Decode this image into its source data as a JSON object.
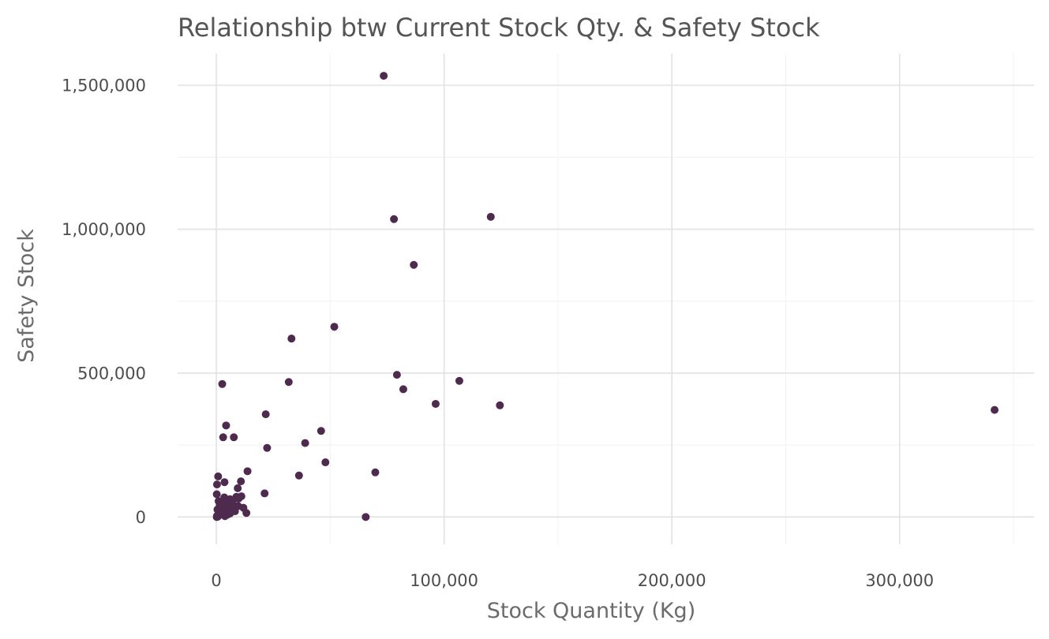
{
  "chart_data": {
    "type": "scatter",
    "title": "Relationship btw Current Stock Qty. & Safety Stock",
    "xlabel": "Stock Quantity (Kg)",
    "ylabel": "Safety Stock",
    "xlim": [
      -17000,
      359000
    ],
    "ylim": [
      -95000,
      1610000
    ],
    "x_ticks": [
      0,
      100000,
      200000,
      300000
    ],
    "x_tick_labels": [
      "0",
      "100,000",
      "200,000",
      "300,000"
    ],
    "y_ticks": [
      0,
      500000,
      1000000,
      1500000
    ],
    "y_tick_labels": [
      "0",
      "500,000",
      "1,000,000",
      "1,500,000"
    ],
    "grid": true,
    "point_color": "#4e2a4f",
    "series": [
      {
        "points": [
          [
            73500,
            1533000
          ],
          [
            78000,
            1035000
          ],
          [
            120500,
            1043000
          ],
          [
            86700,
            876000
          ],
          [
            51800,
            661000
          ],
          [
            33000,
            620000
          ],
          [
            31800,
            469000
          ],
          [
            2600,
            462000
          ],
          [
            79300,
            494000
          ],
          [
            106700,
            473000
          ],
          [
            82100,
            444000
          ],
          [
            96300,
            393000
          ],
          [
            124500,
            388000
          ],
          [
            341700,
            372000
          ],
          [
            21700,
            357000
          ],
          [
            4300,
            318000
          ],
          [
            46000,
            299000
          ],
          [
            3000,
            277000
          ],
          [
            7700,
            277000
          ],
          [
            39000,
            257000
          ],
          [
            22300,
            240000
          ],
          [
            47900,
            190000
          ],
          [
            13700,
            159000
          ],
          [
            69800,
            155000
          ],
          [
            36300,
            144000
          ],
          [
            800,
            141000
          ],
          [
            10800,
            124000
          ],
          [
            3600,
            121000
          ],
          [
            300,
            113000
          ],
          [
            9400,
            100000
          ],
          [
            21200,
            82000
          ],
          [
            200,
            79000
          ],
          [
            8800,
            70000
          ],
          [
            11000,
            72000
          ],
          [
            3500,
            68000
          ],
          [
            6000,
            62000
          ],
          [
            1000,
            55000
          ],
          [
            2200,
            50000
          ],
          [
            5000,
            45000
          ],
          [
            7500,
            42000
          ],
          [
            9600,
            38000
          ],
          [
            11900,
            32000
          ],
          [
            3000,
            30000
          ],
          [
            500,
            26000
          ],
          [
            1800,
            22000
          ],
          [
            4000,
            18000
          ],
          [
            6500,
            25000
          ],
          [
            8200,
            20000
          ],
          [
            13200,
            14000
          ],
          [
            2500,
            10000
          ],
          [
            4800,
            8000
          ],
          [
            1200,
            6000
          ],
          [
            300,
            4000
          ],
          [
            700,
            2000
          ],
          [
            3800,
            3000
          ],
          [
            6000,
            12000
          ],
          [
            2000,
            35000
          ],
          [
            7200,
            58000
          ],
          [
            9800,
            64000
          ],
          [
            1500,
            40000
          ],
          [
            65600,
            0
          ],
          [
            200,
            0
          ],
          [
            600,
            1000
          ],
          [
            2800,
            15000
          ],
          [
            5500,
            33000
          ]
        ]
      }
    ]
  }
}
